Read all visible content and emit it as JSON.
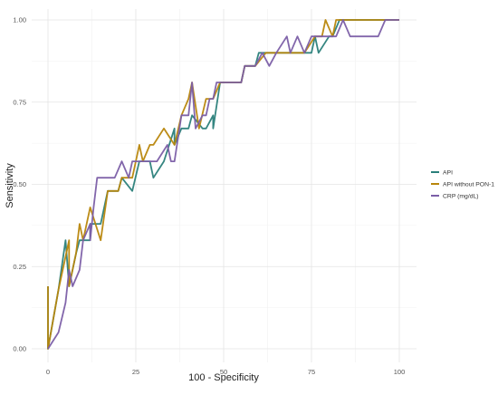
{
  "chart_data": {
    "type": "line",
    "title": "",
    "xlabel": "100 - Specificity",
    "ylabel": "Sensitivity",
    "xlim": [
      0,
      100
    ],
    "ylim": [
      0,
      1
    ],
    "x_ticks": [
      0,
      25,
      50,
      75,
      100
    ],
    "x_tick_labels": [
      "0",
      "25",
      "50",
      "75",
      "100"
    ],
    "y_ticks": [
      0,
      0.25,
      0.5,
      0.75,
      1
    ],
    "y_tick_labels": [
      "0.00",
      "0.25",
      "0.50",
      "0.75",
      "1.00"
    ],
    "grid": true,
    "legend_position": "right",
    "series": [
      {
        "name": "API",
        "color": "#2a7f7a",
        "points": [
          [
            0,
            0.19
          ],
          [
            0,
            0
          ],
          [
            3,
            0.18
          ],
          [
            5,
            0.33
          ],
          [
            6,
            0.19
          ],
          [
            8,
            0.29
          ],
          [
            9,
            0.33
          ],
          [
            10,
            0.33
          ],
          [
            12,
            0.33
          ],
          [
            12,
            0.38
          ],
          [
            15,
            0.38
          ],
          [
            17,
            0.48
          ],
          [
            20,
            0.48
          ],
          [
            21,
            0.52
          ],
          [
            24,
            0.48
          ],
          [
            26,
            0.57
          ],
          [
            29,
            0.57
          ],
          [
            30,
            0.52
          ],
          [
            33,
            0.57
          ],
          [
            36,
            0.67
          ],
          [
            36,
            0.62
          ],
          [
            38,
            0.67
          ],
          [
            40,
            0.67
          ],
          [
            41,
            0.71
          ],
          [
            44,
            0.67
          ],
          [
            45,
            0.67
          ],
          [
            47,
            0.71
          ],
          [
            47,
            0.67
          ],
          [
            49,
            0.81
          ],
          [
            50,
            0.81
          ],
          [
            55,
            0.81
          ],
          [
            56,
            0.86
          ],
          [
            59,
            0.86
          ],
          [
            60,
            0.9
          ],
          [
            64,
            0.9
          ],
          [
            66,
            0.9
          ],
          [
            69,
            0.9
          ],
          [
            70,
            0.9
          ],
          [
            75,
            0.9
          ],
          [
            76,
            0.95
          ],
          [
            77,
            0.9
          ],
          [
            80,
            0.95
          ],
          [
            81,
            0.95
          ],
          [
            83,
            1.0
          ],
          [
            100,
            1.0
          ]
        ]
      },
      {
        "name": "API without PON-1",
        "color": "#b8860b",
        "points": [
          [
            0,
            0.19
          ],
          [
            0,
            0
          ],
          [
            3,
            0.18
          ],
          [
            6,
            0.33
          ],
          [
            6,
            0.19
          ],
          [
            8,
            0.29
          ],
          [
            9,
            0.38
          ],
          [
            10,
            0.33
          ],
          [
            12,
            0.43
          ],
          [
            15,
            0.33
          ],
          [
            17,
            0.48
          ],
          [
            20,
            0.48
          ],
          [
            21,
            0.52
          ],
          [
            24,
            0.52
          ],
          [
            26,
            0.62
          ],
          [
            27,
            0.57
          ],
          [
            29,
            0.62
          ],
          [
            30,
            0.62
          ],
          [
            33,
            0.67
          ],
          [
            36,
            0.62
          ],
          [
            38,
            0.71
          ],
          [
            40,
            0.76
          ],
          [
            41,
            0.81
          ],
          [
            43,
            0.67
          ],
          [
            45,
            0.76
          ],
          [
            47,
            0.76
          ],
          [
            49,
            0.81
          ],
          [
            50,
            0.81
          ],
          [
            55,
            0.81
          ],
          [
            56,
            0.86
          ],
          [
            59,
            0.86
          ],
          [
            62,
            0.9
          ],
          [
            64,
            0.9
          ],
          [
            66,
            0.9
          ],
          [
            69,
            0.9
          ],
          [
            70,
            0.9
          ],
          [
            73,
            0.9
          ],
          [
            76,
            0.95
          ],
          [
            78,
            0.95
          ],
          [
            79,
            1.0
          ],
          [
            81,
            0.95
          ],
          [
            82,
            1.0
          ],
          [
            86,
            1.0
          ],
          [
            100,
            1.0
          ]
        ]
      },
      {
        "name": "CRP (mg/dL)",
        "color": "#7b5ea7",
        "points": [
          [
            0,
            0
          ],
          [
            3,
            0.05
          ],
          [
            5,
            0.14
          ],
          [
            6,
            0.24
          ],
          [
            7,
            0.19
          ],
          [
            9,
            0.24
          ],
          [
            10,
            0.33
          ],
          [
            12,
            0.38
          ],
          [
            12,
            0.33
          ],
          [
            13,
            0.43
          ],
          [
            14,
            0.52
          ],
          [
            16,
            0.52
          ],
          [
            17,
            0.52
          ],
          [
            19,
            0.52
          ],
          [
            21,
            0.57
          ],
          [
            23,
            0.52
          ],
          [
            24,
            0.57
          ],
          [
            26,
            0.57
          ],
          [
            29,
            0.57
          ],
          [
            31,
            0.57
          ],
          [
            34,
            0.62
          ],
          [
            35,
            0.57
          ],
          [
            36,
            0.57
          ],
          [
            38,
            0.71
          ],
          [
            40,
            0.71
          ],
          [
            41,
            0.81
          ],
          [
            42,
            0.67
          ],
          [
            44,
            0.71
          ],
          [
            45,
            0.71
          ],
          [
            46,
            0.76
          ],
          [
            47,
            0.76
          ],
          [
            48,
            0.81
          ],
          [
            50,
            0.81
          ],
          [
            53,
            0.81
          ],
          [
            55,
            0.81
          ],
          [
            56,
            0.86
          ],
          [
            59,
            0.86
          ],
          [
            61,
            0.9
          ],
          [
            63,
            0.86
          ],
          [
            65,
            0.9
          ],
          [
            68,
            0.95
          ],
          [
            69,
            0.9
          ],
          [
            71,
            0.95
          ],
          [
            73,
            0.9
          ],
          [
            75,
            0.95
          ],
          [
            78,
            0.95
          ],
          [
            80,
            0.95
          ],
          [
            82,
            0.95
          ],
          [
            84,
            1.0
          ],
          [
            86,
            0.95
          ],
          [
            94,
            0.95
          ],
          [
            96,
            1.0
          ],
          [
            100,
            1.0
          ]
        ]
      }
    ]
  }
}
